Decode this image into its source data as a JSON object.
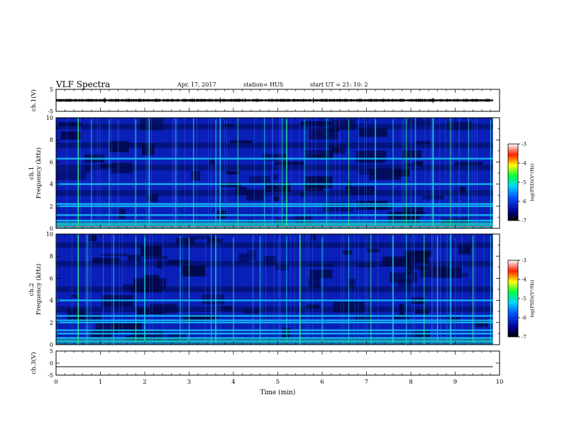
{
  "header": {
    "title": "VLF Spectra",
    "date": "Apr. 17, 2017",
    "station": "station= HUS",
    "start_ut": "start  UT  =   21: 10: 2"
  },
  "chart_data": [
    {
      "type": "line",
      "panel": "ch1-waveform",
      "ylabel": "ch.1(V)",
      "ylim": [
        -5,
        5
      ],
      "yticks": [
        "5",
        "-5"
      ],
      "xlim": [
        0,
        10
      ],
      "trace_level": 0,
      "trace_amplitude": 0.5
    },
    {
      "type": "heatmap",
      "panel": "ch1-spectrogram",
      "ylabel": "ch.1\nFrequency  (kHz)",
      "ylim": [
        0,
        10
      ],
      "yticks": [
        "0",
        "2",
        "4",
        "6",
        "8",
        "10"
      ],
      "xlim": [
        0,
        10
      ],
      "data_end_min": 9.85,
      "colorbar": {
        "label": "log(PSD)(V²/Hz)",
        "ticks": [
          "-3",
          "-4",
          "-5",
          "-6",
          "-7"
        ],
        "range": [
          -7,
          -3
        ]
      },
      "bright_bands_khz": [
        0.1,
        0.2,
        0.4,
        0.7,
        1.2,
        2.0,
        2.2,
        4.0,
        6.3
      ],
      "dark_bands_khz": [
        3.2,
        5.5,
        7.5,
        9.2
      ],
      "sferic_times_min": [
        0.5,
        0.8,
        1.2,
        1.8,
        2.1,
        2.7,
        3.1,
        3.6,
        3.7,
        4.1,
        4.7,
        5.1,
        5.2,
        5.6,
        6.1,
        6.6,
        7.2,
        7.6,
        7.9,
        8.1,
        8.5,
        8.9,
        9.3,
        9.8
      ]
    },
    {
      "type": "heatmap",
      "panel": "ch2-spectrogram",
      "ylabel": "ch.2\nFrequency  (kHz)",
      "ylim": [
        0,
        10
      ],
      "yticks": [
        "0",
        "2",
        "4",
        "6",
        "8",
        "10"
      ],
      "xlim": [
        0,
        10
      ],
      "data_end_min": 9.85,
      "colorbar": {
        "label": "log(PSD)(V²/Hz)",
        "ticks": [
          "-3",
          "-4",
          "-5",
          "-6",
          "-7"
        ],
        "range": [
          -7,
          -3
        ]
      },
      "bright_bands_khz": [
        0.3,
        0.6,
        1.0,
        1.3,
        2.0,
        2.2,
        2.6,
        4.0
      ],
      "dark_bands_khz": [
        3.2,
        5.0,
        7.3,
        9.0
      ],
      "sferic_times_min": [
        0.5,
        0.7,
        1.3,
        1.8,
        2.0,
        2.8,
        3.0,
        3.5,
        3.6,
        4.0,
        4.6,
        5.2,
        5.5,
        6.0,
        6.6,
        7.1,
        7.6,
        7.9,
        8.3,
        8.6,
        8.9,
        9.4,
        9.8
      ]
    },
    {
      "type": "line",
      "panel": "ch3-waveform",
      "ylabel": "ch.3(V)",
      "ylim": [
        -5,
        5
      ],
      "yticks": [
        "5",
        "0",
        "-5"
      ],
      "xlim": [
        0,
        10
      ],
      "trace_level": -1.5,
      "xlabel": "Time  (min)",
      "xticks": [
        "0",
        "1",
        "2",
        "3",
        "4",
        "5",
        "6",
        "7",
        "8",
        "9",
        "10"
      ]
    }
  ]
}
